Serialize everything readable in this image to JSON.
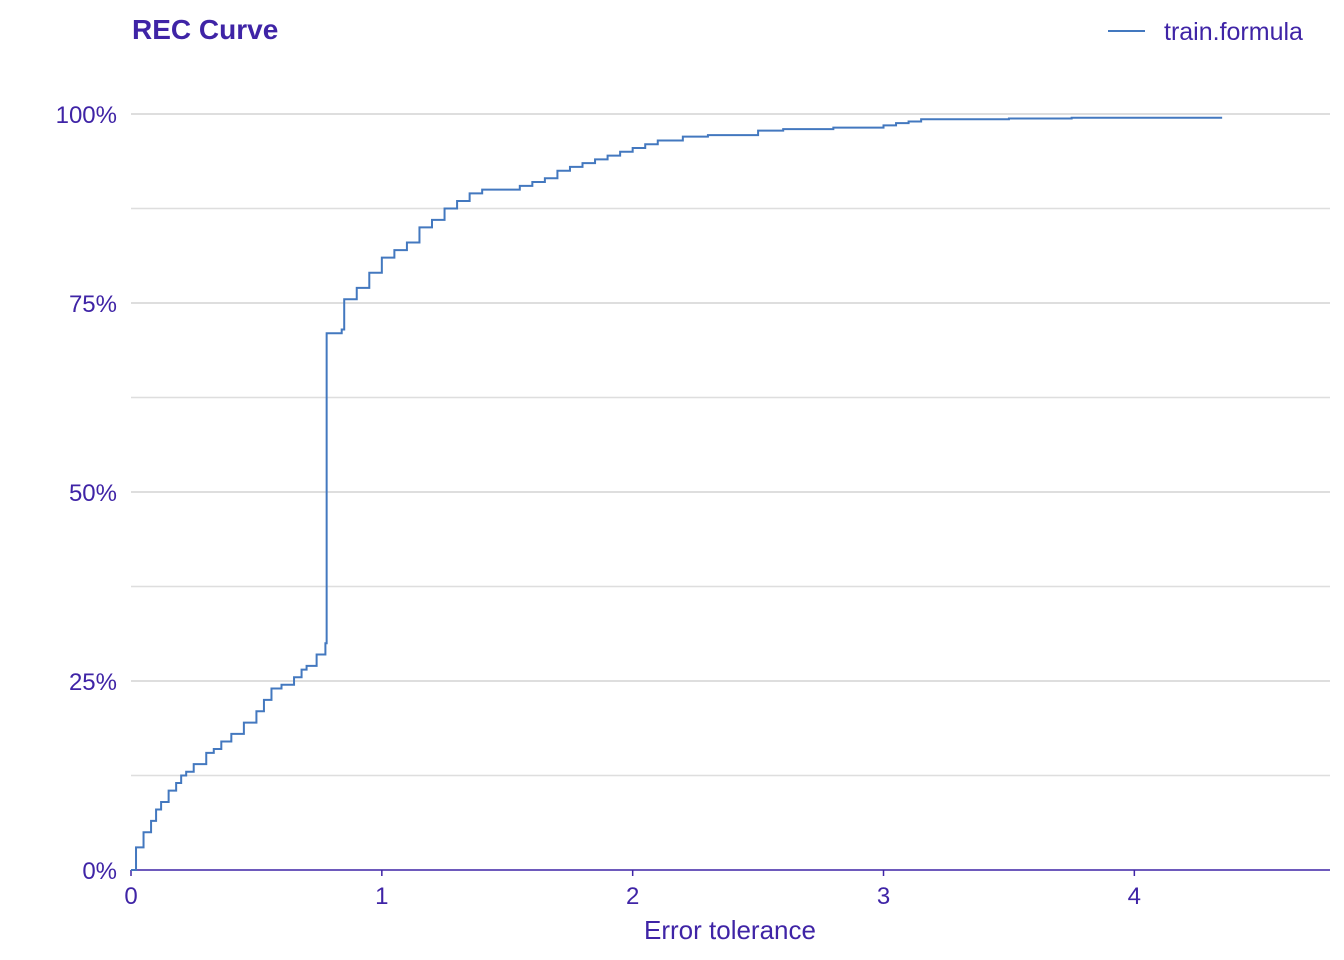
{
  "chart_data": {
    "type": "line",
    "title": "REC Curve",
    "xlabel": "Error tolerance",
    "ylabel": "",
    "xlim": [
      0,
      4.78
    ],
    "ylim": [
      0,
      1
    ],
    "x_ticks": [
      0,
      1,
      2,
      3,
      4
    ],
    "x_tick_labels": [
      "0",
      "1",
      "2",
      "3",
      "4"
    ],
    "y_ticks": [
      0,
      0.25,
      0.5,
      0.75,
      1.0
    ],
    "y_tick_labels": [
      "0%",
      "25%",
      "50%",
      "75%",
      "100%"
    ],
    "y_minor_gridlines": [
      0.125,
      0.375,
      0.625,
      0.875
    ],
    "grid": true,
    "legend_position": "top-right",
    "colors": {
      "text": "#3f24a6",
      "line": "#4378bf",
      "grid": "#dedede",
      "axis": "#3f24a6"
    },
    "series": [
      {
        "name": "train.formula",
        "step": true,
        "x": [
          0,
          0.02,
          0.05,
          0.08,
          0.1,
          0.12,
          0.15,
          0.18,
          0.2,
          0.22,
          0.25,
          0.3,
          0.33,
          0.36,
          0.4,
          0.45,
          0.5,
          0.53,
          0.56,
          0.6,
          0.65,
          0.68,
          0.7,
          0.74,
          0.775,
          0.78,
          0.84,
          0.85,
          0.9,
          0.95,
          1.0,
          1.05,
          1.1,
          1.15,
          1.2,
          1.25,
          1.3,
          1.35,
          1.4,
          1.5,
          1.55,
          1.6,
          1.65,
          1.7,
          1.75,
          1.8,
          1.85,
          1.9,
          1.95,
          2.0,
          2.05,
          2.1,
          2.2,
          2.3,
          2.5,
          2.6,
          2.8,
          3.0,
          3.05,
          3.1,
          3.15,
          3.5,
          3.75,
          4.35
        ],
        "y": [
          0,
          0.03,
          0.05,
          0.065,
          0.08,
          0.09,
          0.105,
          0.115,
          0.125,
          0.13,
          0.14,
          0.155,
          0.16,
          0.17,
          0.18,
          0.195,
          0.21,
          0.225,
          0.24,
          0.245,
          0.255,
          0.265,
          0.27,
          0.285,
          0.3,
          0.71,
          0.715,
          0.755,
          0.77,
          0.79,
          0.81,
          0.82,
          0.83,
          0.85,
          0.86,
          0.875,
          0.885,
          0.895,
          0.9,
          0.9,
          0.905,
          0.91,
          0.915,
          0.925,
          0.93,
          0.935,
          0.94,
          0.945,
          0.95,
          0.955,
          0.96,
          0.965,
          0.97,
          0.972,
          0.978,
          0.98,
          0.982,
          0.985,
          0.988,
          0.99,
          0.993,
          0.994,
          0.995,
          0.995
        ]
      }
    ]
  }
}
